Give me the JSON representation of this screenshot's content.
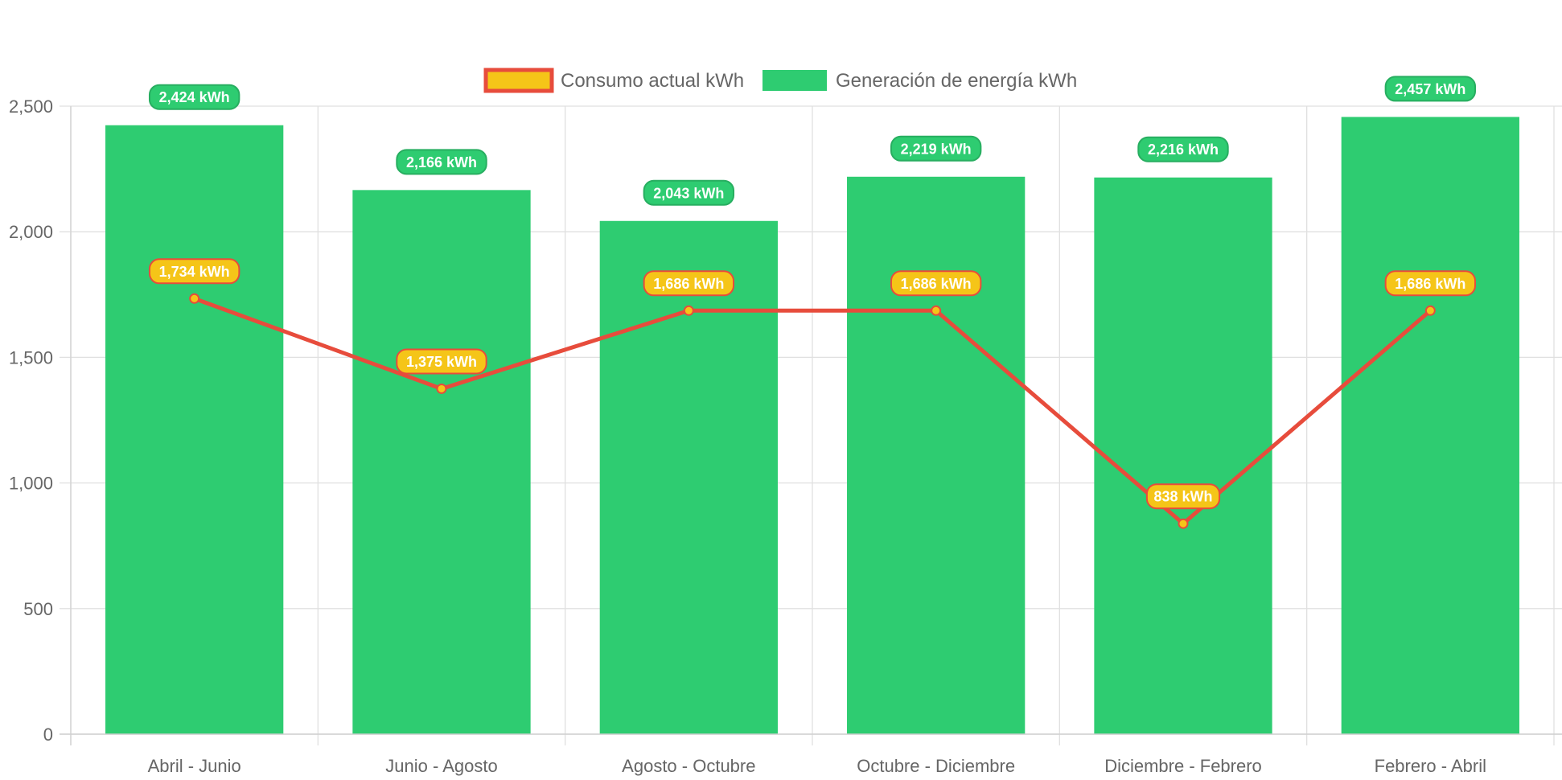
{
  "chart_data": {
    "type": "bar",
    "categories": [
      "Abril - Junio",
      "Junio - Agosto",
      "Agosto - Octubre",
      "Octubre - Diciembre",
      "Diciembre - Febrero",
      "Febrero - Abril"
    ],
    "series": [
      {
        "name": "Consumo actual kWh",
        "render": "line",
        "values": [
          1734,
          1375,
          1686,
          1686,
          838,
          1686
        ],
        "labels": [
          "1,734 kWh",
          "1,375 kWh",
          "1,686 kWh",
          "1,686 kWh",
          "838 kWh",
          "1,686 kWh"
        ],
        "color": "#e74c3c",
        "fill_color": "#f5c518"
      },
      {
        "name": "Generación de energía kWh",
        "render": "bar",
        "values": [
          2424,
          2166,
          2043,
          2219,
          2216,
          2457
        ],
        "labels": [
          "2,424 kWh",
          "2,166 kWh",
          "2,043 kWh",
          "2,219 kWh",
          "2,216 kWh",
          "2,457 kWh"
        ],
        "color": "#2ecc71",
        "border_color": "#27ae60"
      }
    ],
    "y_ticks": [
      "0",
      "500",
      "1,000",
      "1,500",
      "2,000",
      "2,500"
    ],
    "ylim": [
      0,
      2500
    ],
    "title": "",
    "xlabel": "",
    "ylabel": "",
    "grid": true,
    "legend_position": "top-center"
  }
}
